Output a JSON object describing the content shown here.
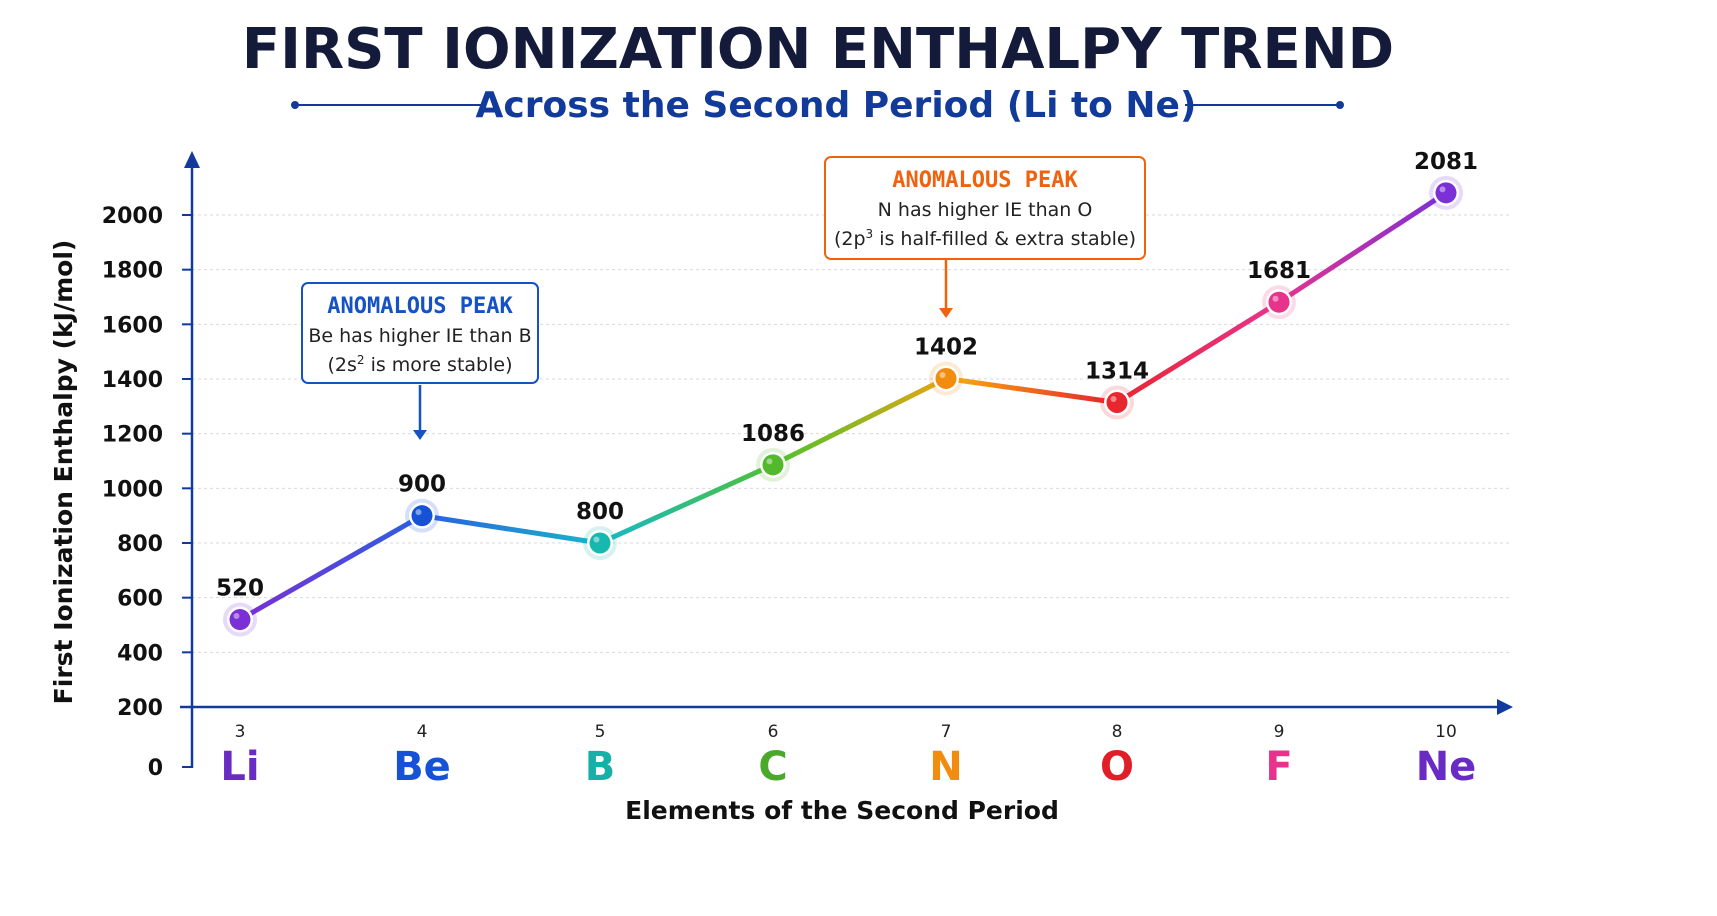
{
  "chart_data": {
    "type": "line",
    "title": "FIRST IONIZATION ENTHALPY TREND",
    "subtitle": "Across the Second Period (Li to Ne)",
    "xlabel": "Elements of the Second Period",
    "ylabel": "First Ionization Enthalpy (kJ/mol)",
    "ylim": [
      0,
      2000
    ],
    "yticks": [
      "0",
      "200",
      "400",
      "600",
      "800",
      "1000",
      "1200",
      "1400",
      "1600",
      "1800",
      "2000"
    ],
    "grid": true,
    "atomic_numbers": [
      "3",
      "4",
      "5",
      "6",
      "7",
      "8",
      "9",
      "10"
    ],
    "categories": [
      "Li",
      "Be",
      "B",
      "C",
      "N",
      "O",
      "F",
      "Ne"
    ],
    "values": [
      520,
      900,
      800,
      1086,
      1402,
      1314,
      1681,
      2081
    ],
    "point_colors": [
      "#7b2fd6",
      "#1552d6",
      "#17b8b0",
      "#52b82c",
      "#f28c0f",
      "#e8262d",
      "#e8338d",
      "#7b2fd6"
    ],
    "symbol_colors": [
      "#6a2bc4",
      "#1552d6",
      "#17b0a8",
      "#4aa82a",
      "#f28c0f",
      "#e01e28",
      "#e8338d",
      "#6a2bc4"
    ],
    "annotations": [
      {
        "title": "ANOMALOUS PEAK",
        "line1": "Be has higher IE than B",
        "line2_pre": "(2s",
        "line2_sup": "2",
        "line2_post": " is more stable)",
        "color": "#1552c4",
        "target": "Be"
      },
      {
        "title": "ANOMALOUS PEAK",
        "line1": "N has higher IE than O",
        "line2_pre": "(2p",
        "line2_sup": "3",
        "line2_post": " is half-filled & extra stable)",
        "color": "#f0620e",
        "target": "N"
      }
    ]
  }
}
